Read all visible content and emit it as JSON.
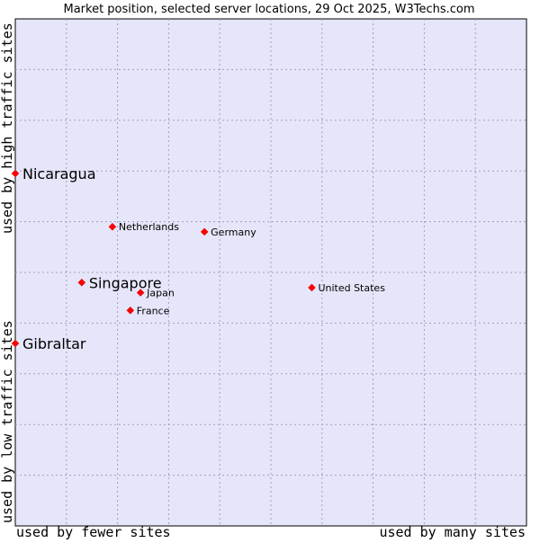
{
  "chart_data": {
    "type": "scatter",
    "title": "Market position, selected server locations, 29 Oct 2025, W3Techs.com",
    "xlabel_left": "used by fewer sites",
    "xlabel_right": "used by many sites",
    "ylabel_top": "used by high traffic sites",
    "ylabel_bottom": "used by low traffic sites",
    "xlim": [
      0,
      10
    ],
    "ylim": [
      0,
      10
    ],
    "grid": true,
    "colors": {
      "plot_background": "#e6e6fa",
      "grid": "#a0a0c0",
      "marker": "#ff0000",
      "text": "#000000"
    },
    "points": [
      {
        "label": "Nicaragua",
        "x": 0.0,
        "y": 6.95,
        "emphasis": true
      },
      {
        "label": "Netherlands",
        "x": 1.9,
        "y": 5.9,
        "emphasis": false
      },
      {
        "label": "Germany",
        "x": 3.7,
        "y": 5.8,
        "emphasis": false
      },
      {
        "label": "Singapore",
        "x": 1.3,
        "y": 4.8,
        "emphasis": true
      },
      {
        "label": "Japan",
        "x": 2.45,
        "y": 4.6,
        "emphasis": false
      },
      {
        "label": "France",
        "x": 2.25,
        "y": 4.25,
        "emphasis": false
      },
      {
        "label": "United States",
        "x": 5.8,
        "y": 4.7,
        "emphasis": false
      },
      {
        "label": "Gibraltar",
        "x": 0.0,
        "y": 3.6,
        "emphasis": true
      }
    ]
  }
}
